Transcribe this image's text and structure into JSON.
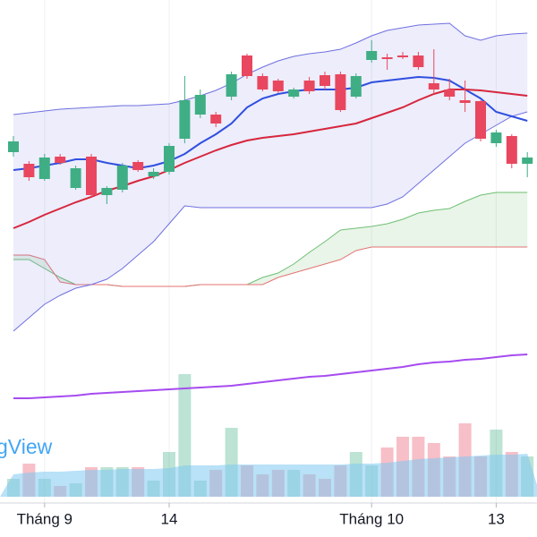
{
  "chart_data": {
    "type": "candlestick",
    "watermark": "gView",
    "categories": [
      null,
      null,
      "Tháng 9",
      null,
      null,
      null,
      null,
      null,
      null,
      null,
      "14",
      null,
      null,
      null,
      null,
      null,
      null,
      null,
      null,
      null,
      null,
      null,
      null,
      "Tháng 10",
      null,
      null,
      null,
      null,
      null,
      null,
      null,
      "13",
      null,
      null
    ],
    "open": [
      430,
      417,
      400,
      425,
      390,
      425,
      382,
      388,
      419,
      403,
      408,
      445,
      472,
      472,
      492,
      538,
      515,
      510,
      492,
      510,
      516,
      517,
      492,
      533,
      536,
      538,
      538,
      507,
      500,
      488,
      487,
      440,
      448,
      417
    ],
    "high": [
      448,
      420,
      428,
      428,
      415,
      428,
      392,
      418,
      421,
      412,
      440,
      515,
      500,
      475,
      520,
      540,
      518,
      512,
      502,
      514,
      520,
      520,
      518,
      555,
      540,
      542,
      542,
      545,
      512,
      510,
      488,
      455,
      450,
      430
    ],
    "low": [
      425,
      398,
      398,
      416,
      388,
      380,
      372,
      385,
      408,
      400,
      405,
      440,
      468,
      458,
      488,
      512,
      498,
      496,
      490,
      495,
      500,
      475,
      490,
      530,
      522,
      534,
      522,
      495,
      488,
      475,
      442,
      436,
      412,
      402
    ],
    "close": [
      442,
      402,
      424,
      418,
      412,
      382,
      390,
      415,
      410,
      408,
      437,
      488,
      494,
      462,
      517,
      515,
      500,
      498,
      500,
      498,
      504,
      477,
      515,
      543,
      534,
      536,
      525,
      500,
      492,
      485,
      445,
      452,
      417,
      424
    ],
    "up_color": "#3fae84",
    "down_color": "#e8475f",
    "ylim": [
      0,
      600
    ],
    "volume": [
      20,
      37,
      20,
      12,
      15,
      33,
      33,
      33,
      33,
      18,
      50,
      137,
      18,
      30,
      77,
      35,
      25,
      30,
      30,
      25,
      20,
      35,
      50,
      35,
      55,
      67,
      67,
      60,
      45,
      82,
      45,
      75,
      50,
      45
    ],
    "volume_ma": [
      25,
      27,
      28,
      28,
      29,
      30,
      30,
      31,
      31,
      31,
      32,
      35,
      35,
      35,
      36,
      36,
      36,
      36,
      36,
      36,
      36,
      36,
      37,
      37,
      38,
      40,
      42,
      43,
      44,
      45,
      46,
      47,
      47,
      48
    ],
    "volume_ma_color": "#7fc8f0",
    "volume_lim": [
      0,
      160
    ],
    "band": {
      "color": "#6f6fe0",
      "upper": [
        472,
        474,
        476,
        478,
        479,
        480,
        481,
        482,
        482,
        483,
        484,
        488,
        493,
        499,
        507,
        517,
        525,
        532,
        537,
        540,
        542,
        545,
        552,
        560,
        566,
        569,
        572,
        573,
        574,
        560,
        555,
        560,
        562,
        563
      ],
      "lower": [
        230,
        245,
        260,
        270,
        278,
        282,
        288,
        300,
        315,
        330,
        350,
        370,
        368,
        368,
        368,
        368,
        368,
        368,
        368,
        368,
        368,
        368,
        368,
        368,
        372,
        380,
        395,
        410,
        425,
        440,
        450,
        460,
        470,
        475
      ]
    },
    "cloud": {
      "color": "#4caf50",
      "line_a_color": "#6fbf73",
      "line_b_color": "#e57373",
      "span_a": [
        310,
        310,
        300,
        290,
        282,
        282,
        282,
        280,
        280,
        280,
        280,
        280,
        282,
        282,
        282,
        282,
        290,
        295,
        305,
        318,
        330,
        343,
        345,
        347,
        350,
        355,
        362,
        365,
        367,
        375,
        382,
        385,
        385,
        385
      ],
      "span_b": [
        315,
        315,
        310,
        285,
        282,
        282,
        282,
        280,
        280,
        280,
        280,
        280,
        282,
        282,
        282,
        282,
        282,
        290,
        295,
        300,
        305,
        310,
        320,
        324,
        324,
        324,
        324,
        324,
        324,
        324,
        324,
        324,
        324,
        324
      ]
    },
    "series": [
      {
        "color": "#2f4fe0",
        "values": [
          410,
          412,
          415,
          418,
          422,
          422,
          418,
          415,
          412,
          415,
          420,
          428,
          440,
          450,
          462,
          480,
          490,
          495,
          498,
          500,
          500,
          500,
          502,
          508,
          510,
          512,
          514,
          513,
          510,
          500,
          490,
          475,
          470,
          465
        ]
      },
      {
        "color": "#d7263d",
        "values": [
          345,
          352,
          360,
          367,
          374,
          380,
          387,
          392,
          398,
          403,
          410,
          418,
          425,
          432,
          438,
          443,
          446,
          448,
          450,
          453,
          456,
          459,
          462,
          468,
          474,
          480,
          488,
          495,
          500,
          500,
          499,
          497,
          495,
          493
        ]
      },
      {
        "color": "#a64bf0",
        "values": [
          155,
          155,
          156,
          157,
          158,
          160,
          161,
          162,
          163,
          164,
          165,
          166,
          167,
          168,
          169,
          171,
          173,
          175,
          177,
          179,
          180,
          182,
          184,
          186,
          188,
          190,
          193,
          195,
          196,
          198,
          199,
          201,
          203,
          204
        ]
      }
    ]
  }
}
